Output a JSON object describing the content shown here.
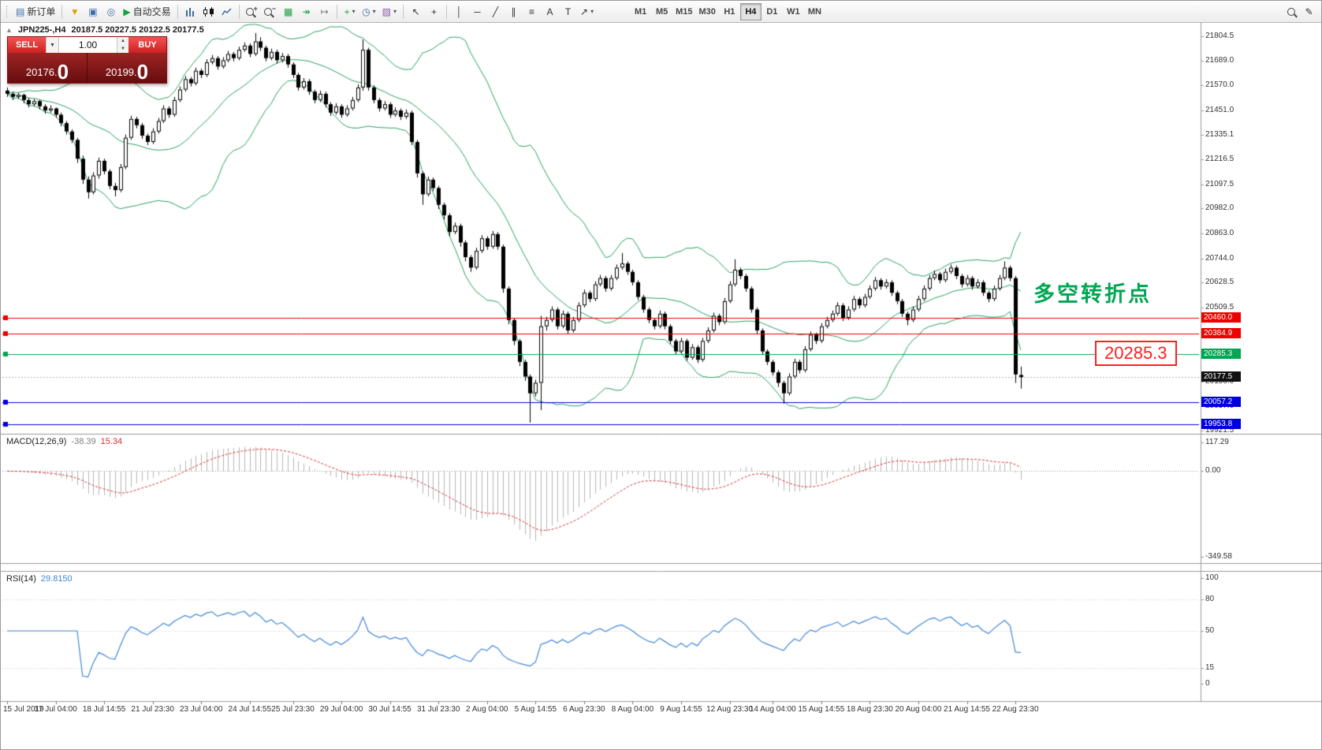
{
  "colors": {
    "bb_green": "#28a05c",
    "macd_hist": "#b6b6b6",
    "macd_signal": "#d43030",
    "rsi_line": "#3f86d6",
    "level_red": "#ee0000",
    "level_green": "#00a651",
    "level_blue": "#0000dd",
    "current_price_black": "#111111",
    "annotation_green": "#00a651",
    "callout_red": "#ff1f1f"
  },
  "toolbar": {
    "new_order_label": "新订单",
    "autotrading_label": "自动交易",
    "timeframes": [
      {
        "label": "M1",
        "active": false
      },
      {
        "label": "M5",
        "active": false
      },
      {
        "label": "M15",
        "active": false
      },
      {
        "label": "M30",
        "active": false
      },
      {
        "label": "H1",
        "active": false
      },
      {
        "label": "H4",
        "active": true
      },
      {
        "label": "D1",
        "active": false
      },
      {
        "label": "W1",
        "active": false
      },
      {
        "label": "MN",
        "active": false
      }
    ],
    "icons": {
      "new_order": "▤",
      "filter": "▼",
      "monitor": "▣",
      "globe": "◎",
      "play": "▶",
      "tile": "▦",
      "autoscroll": "↠",
      "shift": "↦",
      "indicators": "+",
      "clock": "◷",
      "template": "▨",
      "cursor": "↖",
      "crosshair": "+",
      "vline": "│",
      "hline": "─",
      "trendline": "╱",
      "channel": "∥",
      "fibo": "≡",
      "text": "A",
      "label": "T",
      "arrow": "↗",
      "caret": "▾",
      "pencil": "✎"
    }
  },
  "chart": {
    "collapse_arrow": "▲",
    "symbol_period": "JPN225-,H4",
    "ohlc_text": "20187.5 20227.5 20122.5 20177.5",
    "trade_panel": {
      "sell_label": "SELL",
      "buy_label": "BUY",
      "volume": "1.00",
      "spin_up": "▲",
      "spin_down": "▼",
      "preset_caret": "▼",
      "sell_price_main": "20176.",
      "sell_price_big": "0",
      "buy_price_main": "20199.",
      "buy_price_big": "0"
    },
    "levels": [
      {
        "price": 20460.0,
        "label": "20460.0",
        "color": "#ee0000"
      },
      {
        "price": 20384.9,
        "label": "20384.9",
        "color": "#ee0000"
      },
      {
        "price": 20285.3,
        "label": "20285.3",
        "color": "#00a651"
      },
      {
        "price": 20057.2,
        "label": "20057.2",
        "color": "#0000dd"
      },
      {
        "price": 19953.8,
        "label": "19953.8",
        "color": "#0000dd"
      }
    ],
    "current_price": 20177.5,
    "current_price_label": "20177.5",
    "annotations": {
      "turning_point_text": "多空转折点",
      "price_callout": "20285.3"
    }
  },
  "price_scale": {
    "ticks": [
      21804.5,
      21689.0,
      21570.0,
      21451.0,
      21335.1,
      21216.5,
      21097.5,
      20982.0,
      20863.0,
      20744.0,
      20628.5,
      20509.5,
      20390.5,
      20275.0,
      20156.0,
      20037.0,
      19921.5
    ]
  },
  "time_axis": {
    "labels": [
      "15 Jul 2019",
      "17 Jul 04:00",
      "18 Jul 14:55",
      "21 Jul 23:30",
      "23 Jul 04:00",
      "24 Jul 14:55",
      "25 Jul 23:30",
      "29 Jul 04:00",
      "30 Jul 14:55",
      "31 Jul 23:30",
      "2 Aug 04:00",
      "5 Aug 14:55",
      "6 Aug 23:30",
      "8 Aug 04:00",
      "9 Aug 14:55",
      "12 Aug 23:30",
      "14 Aug 04:00",
      "15 Aug 14:55",
      "18 Aug 23:30",
      "20 Aug 04:00",
      "21 Aug 14:55",
      "22 Aug 23:30"
    ]
  },
  "macd": {
    "name": "MACD(12,26,9)",
    "main_value": "-38.39",
    "signal_value": "15.34",
    "ticks": [
      {
        "value": 117.29,
        "label": "117.29"
      },
      {
        "value": 0,
        "label": "0.00"
      },
      {
        "value": -349.58,
        "label": "-349.58"
      }
    ]
  },
  "rsi": {
    "name": "RSI(14)",
    "value": "29.8150",
    "ticks": [
      {
        "value": 100,
        "label": "100"
      },
      {
        "value": 80,
        "label": "80"
      },
      {
        "value": 50,
        "label": "50"
      },
      {
        "value": 15,
        "label": "15"
      },
      {
        "value": 0,
        "label": "0"
      }
    ]
  },
  "chart_data": {
    "type": "candlestick",
    "symbol": "JPN225-",
    "timeframe": "H4",
    "last_bar": {
      "open": 20187.5,
      "high": 20227.5,
      "low": 20122.5,
      "close": 20177.5
    },
    "overlays": {
      "bollinger": {
        "period": 20,
        "deviation": 2
      },
      "horizontal_levels": [
        20460.0,
        20384.9,
        20285.3,
        20057.2,
        19953.8
      ]
    },
    "indicators": [
      {
        "type": "macd",
        "fast": 12,
        "slow": 26,
        "signal": 9,
        "last_main": -38.39,
        "last_signal": 15.34,
        "y_range": [
          -349.58,
          117.29
        ]
      },
      {
        "type": "rsi",
        "period": 14,
        "last": 29.815,
        "y_range": [
          0,
          100
        ],
        "level_lines": [
          80,
          50,
          15
        ]
      }
    ],
    "candles": [
      [
        21545,
        21560,
        21515,
        21530
      ],
      [
        21530,
        21540,
        21500,
        21515
      ],
      [
        21515,
        21535,
        21505,
        21525
      ],
      [
        21525,
        21530,
        21485,
        21500
      ],
      [
        21500,
        21510,
        21465,
        21480
      ],
      [
        21480,
        21505,
        21470,
        21495
      ],
      [
        21495,
        21500,
        21455,
        21470
      ],
      [
        21470,
        21480,
        21435,
        21450
      ],
      [
        21450,
        21475,
        21440,
        21460
      ],
      [
        21460,
        21465,
        21415,
        21430
      ],
      [
        21430,
        21440,
        21375,
        21390
      ],
      [
        21390,
        21400,
        21335,
        21350
      ],
      [
        21350,
        21360,
        21295,
        21310
      ],
      [
        21310,
        21320,
        21200,
        21220
      ],
      [
        21220,
        21235,
        21100,
        21120
      ],
      [
        21120,
        21135,
        21030,
        21060
      ],
      [
        21060,
        21155,
        21050,
        21140
      ],
      [
        21140,
        21225,
        21125,
        21210
      ],
      [
        21210,
        21220,
        21145,
        21160
      ],
      [
        21160,
        21170,
        21075,
        21090
      ],
      [
        21090,
        21105,
        21040,
        21070
      ],
      [
        21070,
        21195,
        21060,
        21180
      ],
      [
        21180,
        21335,
        21170,
        21320
      ],
      [
        21320,
        21425,
        21310,
        21410
      ],
      [
        21410,
        21420,
        21365,
        21380
      ],
      [
        21380,
        21390,
        21315,
        21330
      ],
      [
        21330,
        21340,
        21285,
        21300
      ],
      [
        21300,
        21365,
        21290,
        21350
      ],
      [
        21350,
        21415,
        21340,
        21400
      ],
      [
        21400,
        21475,
        21390,
        21460
      ],
      [
        21460,
        21470,
        21415,
        21430
      ],
      [
        21430,
        21515,
        21420,
        21500
      ],
      [
        21500,
        21565,
        21490,
        21550
      ],
      [
        21550,
        21615,
        21540,
        21600
      ],
      [
        21600,
        21610,
        21565,
        21580
      ],
      [
        21580,
        21655,
        21570,
        21640
      ],
      [
        21640,
        21650,
        21605,
        21620
      ],
      [
        21620,
        21695,
        21610,
        21680
      ],
      [
        21680,
        21715,
        21670,
        21700
      ],
      [
        21700,
        21710,
        21645,
        21660
      ],
      [
        21660,
        21705,
        21650,
        21690
      ],
      [
        21690,
        21735,
        21680,
        21720
      ],
      [
        21720,
        21730,
        21685,
        21700
      ],
      [
        21700,
        21755,
        21690,
        21740
      ],
      [
        21740,
        21775,
        21730,
        21760
      ],
      [
        21760,
        21770,
        21705,
        21720
      ],
      [
        21720,
        21820,
        21710,
        21780
      ],
      [
        21780,
        21800,
        21735,
        21750
      ],
      [
        21750,
        21760,
        21685,
        21700
      ],
      [
        21700,
        21745,
        21690,
        21730
      ],
      [
        21730,
        21740,
        21675,
        21690
      ],
      [
        21690,
        21725,
        21680,
        21710
      ],
      [
        21710,
        21720,
        21655,
        21670
      ],
      [
        21670,
        21680,
        21605,
        21620
      ],
      [
        21620,
        21630,
        21545,
        21560
      ],
      [
        21560,
        21605,
        21550,
        21590
      ],
      [
        21590,
        21600,
        21525,
        21540
      ],
      [
        21540,
        21550,
        21485,
        21500
      ],
      [
        21500,
        21545,
        21490,
        21530
      ],
      [
        21530,
        21540,
        21465,
        21480
      ],
      [
        21480,
        21490,
        21425,
        21440
      ],
      [
        21440,
        21485,
        21430,
        21470
      ],
      [
        21470,
        21480,
        21415,
        21430
      ],
      [
        21430,
        21475,
        21420,
        21460
      ],
      [
        21460,
        21515,
        21450,
        21500
      ],
      [
        21500,
        21575,
        21490,
        21560
      ],
      [
        21560,
        21790,
        21545,
        21740
      ],
      [
        21740,
        21750,
        21545,
        21560
      ],
      [
        21560,
        21570,
        21485,
        21500
      ],
      [
        21500,
        21510,
        21445,
        21460
      ],
      [
        21460,
        21495,
        21450,
        21480
      ],
      [
        21480,
        21490,
        21415,
        21430
      ],
      [
        21430,
        21465,
        21420,
        21450
      ],
      [
        21450,
        21460,
        21405,
        21420
      ],
      [
        21420,
        21455,
        21410,
        21440
      ],
      [
        21440,
        21450,
        21285,
        21300
      ],
      [
        21300,
        21310,
        21130,
        21150
      ],
      [
        21150,
        21160,
        21000,
        21050
      ],
      [
        21050,
        21135,
        21040,
        21120
      ],
      [
        21120,
        21130,
        21065,
        21080
      ],
      [
        21080,
        21090,
        20980,
        21000
      ],
      [
        21000,
        21010,
        20930,
        20950
      ],
      [
        20950,
        20960,
        20850,
        20870
      ],
      [
        20870,
        20915,
        20860,
        20900
      ],
      [
        20900,
        20910,
        20800,
        20820
      ],
      [
        20820,
        20830,
        20730,
        20750
      ],
      [
        20750,
        20760,
        20680,
        20700
      ],
      [
        20700,
        20795,
        20690,
        20780
      ],
      [
        20780,
        20855,
        20770,
        20840
      ],
      [
        20840,
        20850,
        20785,
        20800
      ],
      [
        20800,
        20875,
        20790,
        20860
      ],
      [
        20860,
        20870,
        20785,
        20800
      ],
      [
        20800,
        20810,
        20580,
        20600
      ],
      [
        20600,
        20610,
        20430,
        20450
      ],
      [
        20450,
        20460,
        20330,
        20350
      ],
      [
        20350,
        20360,
        20230,
        20250
      ],
      [
        20250,
        20260,
        20160,
        20180
      ],
      [
        20180,
        20190,
        19960,
        20100
      ],
      [
        20100,
        20165,
        20085,
        20150
      ],
      [
        20150,
        20470,
        20020,
        20420
      ],
      [
        20420,
        20465,
        20400,
        20450
      ],
      [
        20450,
        20515,
        20440,
        20500
      ],
      [
        20500,
        20510,
        20405,
        20420
      ],
      [
        20420,
        20495,
        20410,
        20480
      ],
      [
        20480,
        20490,
        20385,
        20400
      ],
      [
        20400,
        20465,
        20390,
        20450
      ],
      [
        20450,
        20535,
        20440,
        20520
      ],
      [
        20520,
        20595,
        20510,
        20580
      ],
      [
        20580,
        20590,
        20535,
        20550
      ],
      [
        20550,
        20635,
        20540,
        20620
      ],
      [
        20620,
        20665,
        20610,
        20650
      ],
      [
        20650,
        20660,
        20585,
        20600
      ],
      [
        20600,
        20665,
        20590,
        20650
      ],
      [
        20650,
        20715,
        20640,
        20700
      ],
      [
        20700,
        20770,
        20690,
        20720
      ],
      [
        20720,
        20730,
        20665,
        20680
      ],
      [
        20680,
        20690,
        20615,
        20630
      ],
      [
        20630,
        20640,
        20545,
        20560
      ],
      [
        20560,
        20570,
        20485,
        20500
      ],
      [
        20500,
        20510,
        20435,
        20450
      ],
      [
        20450,
        20460,
        20405,
        20420
      ],
      [
        20420,
        20495,
        20410,
        20480
      ],
      [
        20480,
        20490,
        20405,
        20420
      ],
      [
        20420,
        20430,
        20335,
        20350
      ],
      [
        20350,
        20360,
        20285,
        20300
      ],
      [
        20300,
        20365,
        20290,
        20350
      ],
      [
        20350,
        20360,
        20255,
        20270
      ],
      [
        20270,
        20335,
        20260,
        20320
      ],
      [
        20320,
        20330,
        20245,
        20260
      ],
      [
        20260,
        20365,
        20250,
        20350
      ],
      [
        20350,
        20415,
        20340,
        20400
      ],
      [
        20400,
        20485,
        20390,
        20470
      ],
      [
        20470,
        20480,
        20425,
        20440
      ],
      [
        20440,
        20555,
        20430,
        20540
      ],
      [
        20540,
        20635,
        20530,
        20620
      ],
      [
        20620,
        20740,
        20610,
        20690
      ],
      [
        20690,
        20700,
        20645,
        20660
      ],
      [
        20660,
        20670,
        20585,
        20600
      ],
      [
        20600,
        20610,
        20485,
        20500
      ],
      [
        20500,
        20510,
        20385,
        20400
      ],
      [
        20400,
        20410,
        20285,
        20300
      ],
      [
        20300,
        20310,
        20235,
        20250
      ],
      [
        20250,
        20260,
        20185,
        20200
      ],
      [
        20200,
        20210,
        20130,
        20150
      ],
      [
        20150,
        20160,
        20050,
        20100
      ],
      [
        20100,
        20195,
        20090,
        20180
      ],
      [
        20180,
        20265,
        20170,
        20250
      ],
      [
        20250,
        20260,
        20195,
        20210
      ],
      [
        20210,
        20325,
        20200,
        20310
      ],
      [
        20310,
        20395,
        20300,
        20380
      ],
      [
        20380,
        20390,
        20335,
        20350
      ],
      [
        20350,
        20435,
        20340,
        20420
      ],
      [
        20420,
        20465,
        20410,
        20450
      ],
      [
        20450,
        20495,
        20440,
        20480
      ],
      [
        20480,
        20535,
        20470,
        20520
      ],
      [
        20520,
        20530,
        20445,
        20460
      ],
      [
        20460,
        20515,
        20450,
        20500
      ],
      [
        20500,
        20565,
        20490,
        20550
      ],
      [
        20550,
        20560,
        20505,
        20520
      ],
      [
        20520,
        20575,
        20510,
        20560
      ],
      [
        20560,
        20615,
        20550,
        20600
      ],
      [
        20600,
        20655,
        20590,
        20640
      ],
      [
        20640,
        20650,
        20595,
        20610
      ],
      [
        20610,
        20645,
        20600,
        20630
      ],
      [
        20630,
        20640,
        20565,
        20580
      ],
      [
        20580,
        20590,
        20525,
        20540
      ],
      [
        20540,
        20550,
        20465,
        20480
      ],
      [
        20480,
        20490,
        20425,
        20450
      ],
      [
        20450,
        20515,
        20440,
        20500
      ],
      [
        20500,
        20565,
        20490,
        20550
      ],
      [
        20550,
        20615,
        20540,
        20600
      ],
      [
        20600,
        20665,
        20590,
        20650
      ],
      [
        20650,
        20685,
        20640,
        20670
      ],
      [
        20670,
        20680,
        20625,
        20640
      ],
      [
        20640,
        20695,
        20630,
        20680
      ],
      [
        20680,
        20715,
        20670,
        20700
      ],
      [
        20700,
        20710,
        20645,
        20660
      ],
      [
        20660,
        20670,
        20605,
        20620
      ],
      [
        20620,
        20665,
        20610,
        20650
      ],
      [
        20650,
        20660,
        20595,
        20610
      ],
      [
        20610,
        20645,
        20600,
        20630
      ],
      [
        20630,
        20640,
        20565,
        20580
      ],
      [
        20580,
        20590,
        20535,
        20550
      ],
      [
        20550,
        20615,
        20540,
        20600
      ],
      [
        20600,
        20665,
        20590,
        20650
      ],
      [
        20650,
        20730,
        20640,
        20700
      ],
      [
        20700,
        20710,
        20635,
        20650
      ],
      [
        20650,
        20660,
        20150,
        20190
      ],
      [
        20187.5,
        20227.5,
        20122.5,
        20177.5
      ]
    ]
  }
}
